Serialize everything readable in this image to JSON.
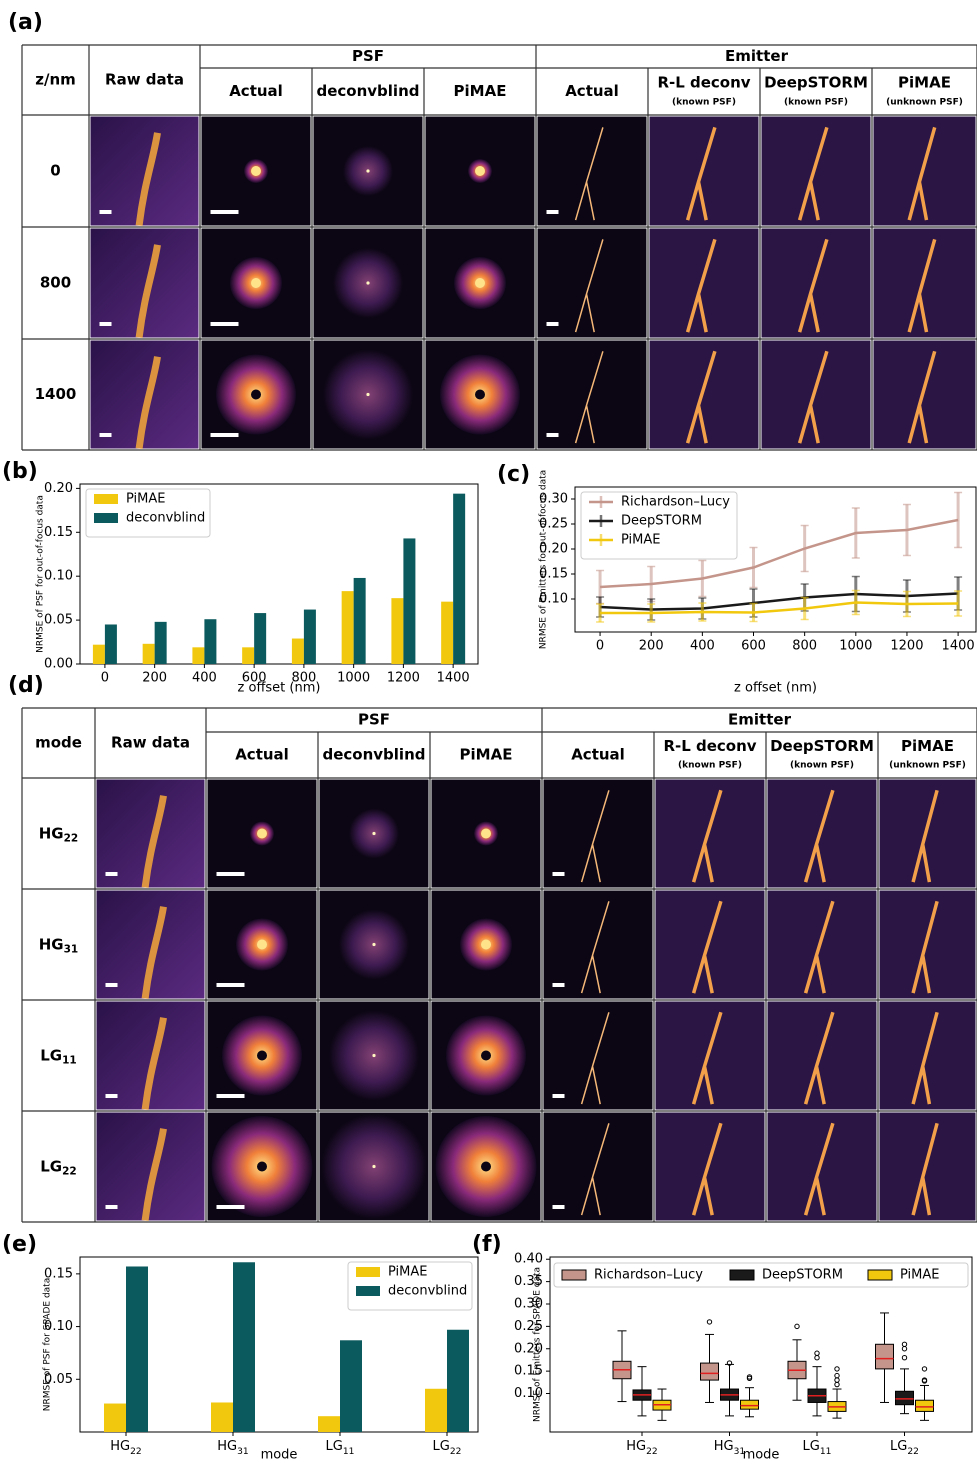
{
  "panel_a": {
    "label": "(a)",
    "corner": "z/nm",
    "raw_header": "Raw data",
    "groups": [
      "PSF",
      "Emitter"
    ],
    "columns": [
      {
        "name": "Actual"
      },
      {
        "name": "deconvblind"
      },
      {
        "name": "PiMAE",
        "color": "#e8453c"
      },
      {
        "name": "Actual"
      },
      {
        "name": "R-L deconv",
        "note": "(known PSF)"
      },
      {
        "name": "DeepSTORM",
        "note": "(known PSF)"
      },
      {
        "name": "PiMAE",
        "note": "(unknown PSF)",
        "color": "#e8453c"
      }
    ],
    "rows": [
      "0",
      "800",
      "1400"
    ]
  },
  "panel_d": {
    "label": "(d)",
    "corner": "mode",
    "raw_header": "Raw data",
    "groups": [
      "PSF",
      "Emitter"
    ],
    "columns": [
      {
        "name": "Actual"
      },
      {
        "name": "deconvblind"
      },
      {
        "name": "PiMAE",
        "color": "#e8453c"
      },
      {
        "name": "Actual"
      },
      {
        "name": "R-L deconv",
        "note": "(known PSF)"
      },
      {
        "name": "DeepSTORM",
        "note": "(known PSF)"
      },
      {
        "name": "PiMAE",
        "note": "(unknown PSF)",
        "color": "#e8453c"
      }
    ],
    "rows": [
      {
        "base": "HG",
        "sub": "22"
      },
      {
        "base": "HG",
        "sub": "31"
      },
      {
        "base": "LG",
        "sub": "11"
      },
      {
        "base": "LG",
        "sub": "22"
      }
    ]
  },
  "chart_data": [
    {
      "label": "(b)",
      "type": "bar",
      "categories": [
        "0",
        "200",
        "400",
        "600",
        "800",
        "1000",
        "1200",
        "1400"
      ],
      "series": [
        {
          "name": "PiMAE",
          "color": "#f2c80f",
          "values": [
            0.022,
            0.023,
            0.019,
            0.019,
            0.029,
            0.083,
            0.075,
            0.071
          ]
        },
        {
          "name": "deconvblind",
          "color": "#0b5a5e",
          "values": [
            0.045,
            0.048,
            0.051,
            0.058,
            0.062,
            0.098,
            0.143,
            0.194
          ]
        }
      ],
      "xlabel": "z offset (nm)",
      "ylabel": "NRMSE of PSF for out-of-focus data",
      "ylim": [
        0,
        0.205
      ],
      "yticks": [
        {
          "value": 0,
          "label": "0.00"
        },
        0.05,
        {
          "value": 0.1,
          "label": "0.10"
        },
        0.15,
        {
          "value": 0.2,
          "label": "0.20"
        }
      ],
      "legend": "upper left"
    },
    {
      "label": "(c)",
      "type": "line",
      "x": [
        0,
        200,
        400,
        600,
        800,
        1000,
        1200,
        1400
      ],
      "series": [
        {
          "name": "Richardson–Lucy",
          "color": "#c4958a",
          "values": [
            0.124,
            0.13,
            0.141,
            0.163,
            0.201,
            0.232,
            0.238,
            0.258
          ],
          "errors": [
            0.033,
            0.035,
            0.036,
            0.04,
            0.046,
            0.05,
            0.051,
            0.055
          ]
        },
        {
          "name": "DeepSTORM",
          "color": "#1a1a1a",
          "values": [
            0.084,
            0.079,
            0.081,
            0.092,
            0.103,
            0.11,
            0.106,
            0.111
          ],
          "errors": [
            0.02,
            0.021,
            0.021,
            0.028,
            0.027,
            0.035,
            0.032,
            0.033
          ]
        },
        {
          "name": "PiMAE",
          "color": "#f2c80f",
          "values": [
            0.072,
            0.072,
            0.074,
            0.073,
            0.081,
            0.093,
            0.09,
            0.091
          ],
          "errors": [
            0.018,
            0.018,
            0.018,
            0.018,
            0.022,
            0.024,
            0.025,
            0.025
          ]
        }
      ],
      "xlabel": "z offset (nm)",
      "ylabel": "NRMSE of Emitters for out-of-focus data",
      "xlim": [
        -98,
        1470
      ],
      "xticks": [
        0,
        200,
        400,
        600,
        800,
        1000,
        1200,
        1400
      ],
      "ylim": [
        0.034,
        0.324
      ],
      "yticks": [
        {
          "value": 0.1,
          "label": "0.10"
        },
        0.15,
        {
          "value": 0.2,
          "label": "0.20"
        },
        0.25,
        {
          "value": 0.3,
          "label": "0.30"
        }
      ],
      "legend": "upper left"
    },
    {
      "label": "(e)",
      "type": "bar",
      "categories": [
        {
          "base": "HG",
          "sub": "22"
        },
        {
          "base": "HG",
          "sub": "31"
        },
        {
          "base": "LG",
          "sub": "11"
        },
        {
          "base": "LG",
          "sub": "22"
        }
      ],
      "series": [
        {
          "name": "PiMAE",
          "color": "#f2c80f",
          "values": [
            0.027,
            0.028,
            0.015,
            0.041
          ]
        },
        {
          "name": "deconvblind",
          "color": "#0b5a5e",
          "values": [
            0.157,
            0.161,
            0.087,
            0.097
          ]
        }
      ],
      "xlabel": "mode",
      "ylabel": "NRMSE of PSF for SPADE data",
      "ylim": [
        0,
        0.166
      ],
      "yticks": [
        0.05,
        {
          "value": 0.1,
          "label": "0.10"
        },
        0.15
      ],
      "legend": "upper right"
    },
    {
      "label": "(f)",
      "type": "box",
      "categories": [
        {
          "base": "HG",
          "sub": "22"
        },
        {
          "base": "HG",
          "sub": "31"
        },
        {
          "base": "LG",
          "sub": "11"
        },
        {
          "base": "LG",
          "sub": "22"
        }
      ],
      "series": [
        {
          "name": "Richardson–Lucy",
          "color": "#c4958a",
          "boxes": [
            {
              "whislo": 0.082,
              "q1": 0.133,
              "med": 0.153,
              "q3": 0.172,
              "whishi": 0.24,
              "fliers": []
            },
            {
              "whislo": 0.08,
              "q1": 0.13,
              "med": 0.145,
              "q3": 0.168,
              "whishi": 0.232,
              "fliers": [
                0.26
              ]
            },
            {
              "whislo": 0.085,
              "q1": 0.133,
              "med": 0.152,
              "q3": 0.172,
              "whishi": 0.22,
              "fliers": [
                0.25
              ]
            },
            {
              "whislo": 0.08,
              "q1": 0.155,
              "med": 0.178,
              "q3": 0.21,
              "whishi": 0.28,
              "fliers": []
            }
          ]
        },
        {
          "name": "DeepSTORM",
          "color": "#1a1a1a",
          "boxes": [
            {
              "whislo": 0.05,
              "q1": 0.085,
              "med": 0.097,
              "q3": 0.108,
              "whishi": 0.16,
              "fliers": []
            },
            {
              "whislo": 0.05,
              "q1": 0.085,
              "med": 0.097,
              "q3": 0.11,
              "whishi": 0.165,
              "fliers": [
                0.168
              ]
            },
            {
              "whislo": 0.05,
              "q1": 0.08,
              "med": 0.095,
              "q3": 0.11,
              "whishi": 0.16,
              "fliers": [
                0.18,
                0.19
              ]
            },
            {
              "whislo": 0.055,
              "q1": 0.075,
              "med": 0.088,
              "q3": 0.105,
              "whishi": 0.155,
              "fliers": [
                0.18,
                0.2,
                0.21
              ]
            }
          ]
        },
        {
          "name": "PiMAE",
          "color": "#f2c80f",
          "boxes": [
            {
              "whislo": 0.04,
              "q1": 0.063,
              "med": 0.075,
              "q3": 0.085,
              "whishi": 0.11,
              "fliers": []
            },
            {
              "whislo": 0.048,
              "q1": 0.065,
              "med": 0.073,
              "q3": 0.085,
              "whishi": 0.113,
              "fliers": [
                0.134,
                0.137
              ]
            },
            {
              "whislo": 0.045,
              "q1": 0.06,
              "med": 0.07,
              "q3": 0.082,
              "whishi": 0.11,
              "fliers": [
                0.12,
                0.13,
                0.14,
                0.155
              ]
            },
            {
              "whislo": 0.04,
              "q1": 0.06,
              "med": 0.07,
              "q3": 0.085,
              "whishi": 0.118,
              "fliers": [
                0.128,
                0.13,
                0.155
              ]
            }
          ]
        }
      ],
      "median_color": "#e02020",
      "xlabel": "mode",
      "ylabel": "NRMSE of Emitters for SPADE data",
      "ylim": [
        0.014,
        0.405
      ],
      "yticks": [
        {
          "value": 0.1,
          "label": "0.10"
        },
        0.15,
        {
          "value": 0.2,
          "label": "0.20"
        },
        0.25,
        {
          "value": 0.3,
          "label": "0.30"
        },
        0.35,
        {
          "value": 0.4,
          "label": "0.40"
        }
      ],
      "legend": "upper center"
    }
  ]
}
